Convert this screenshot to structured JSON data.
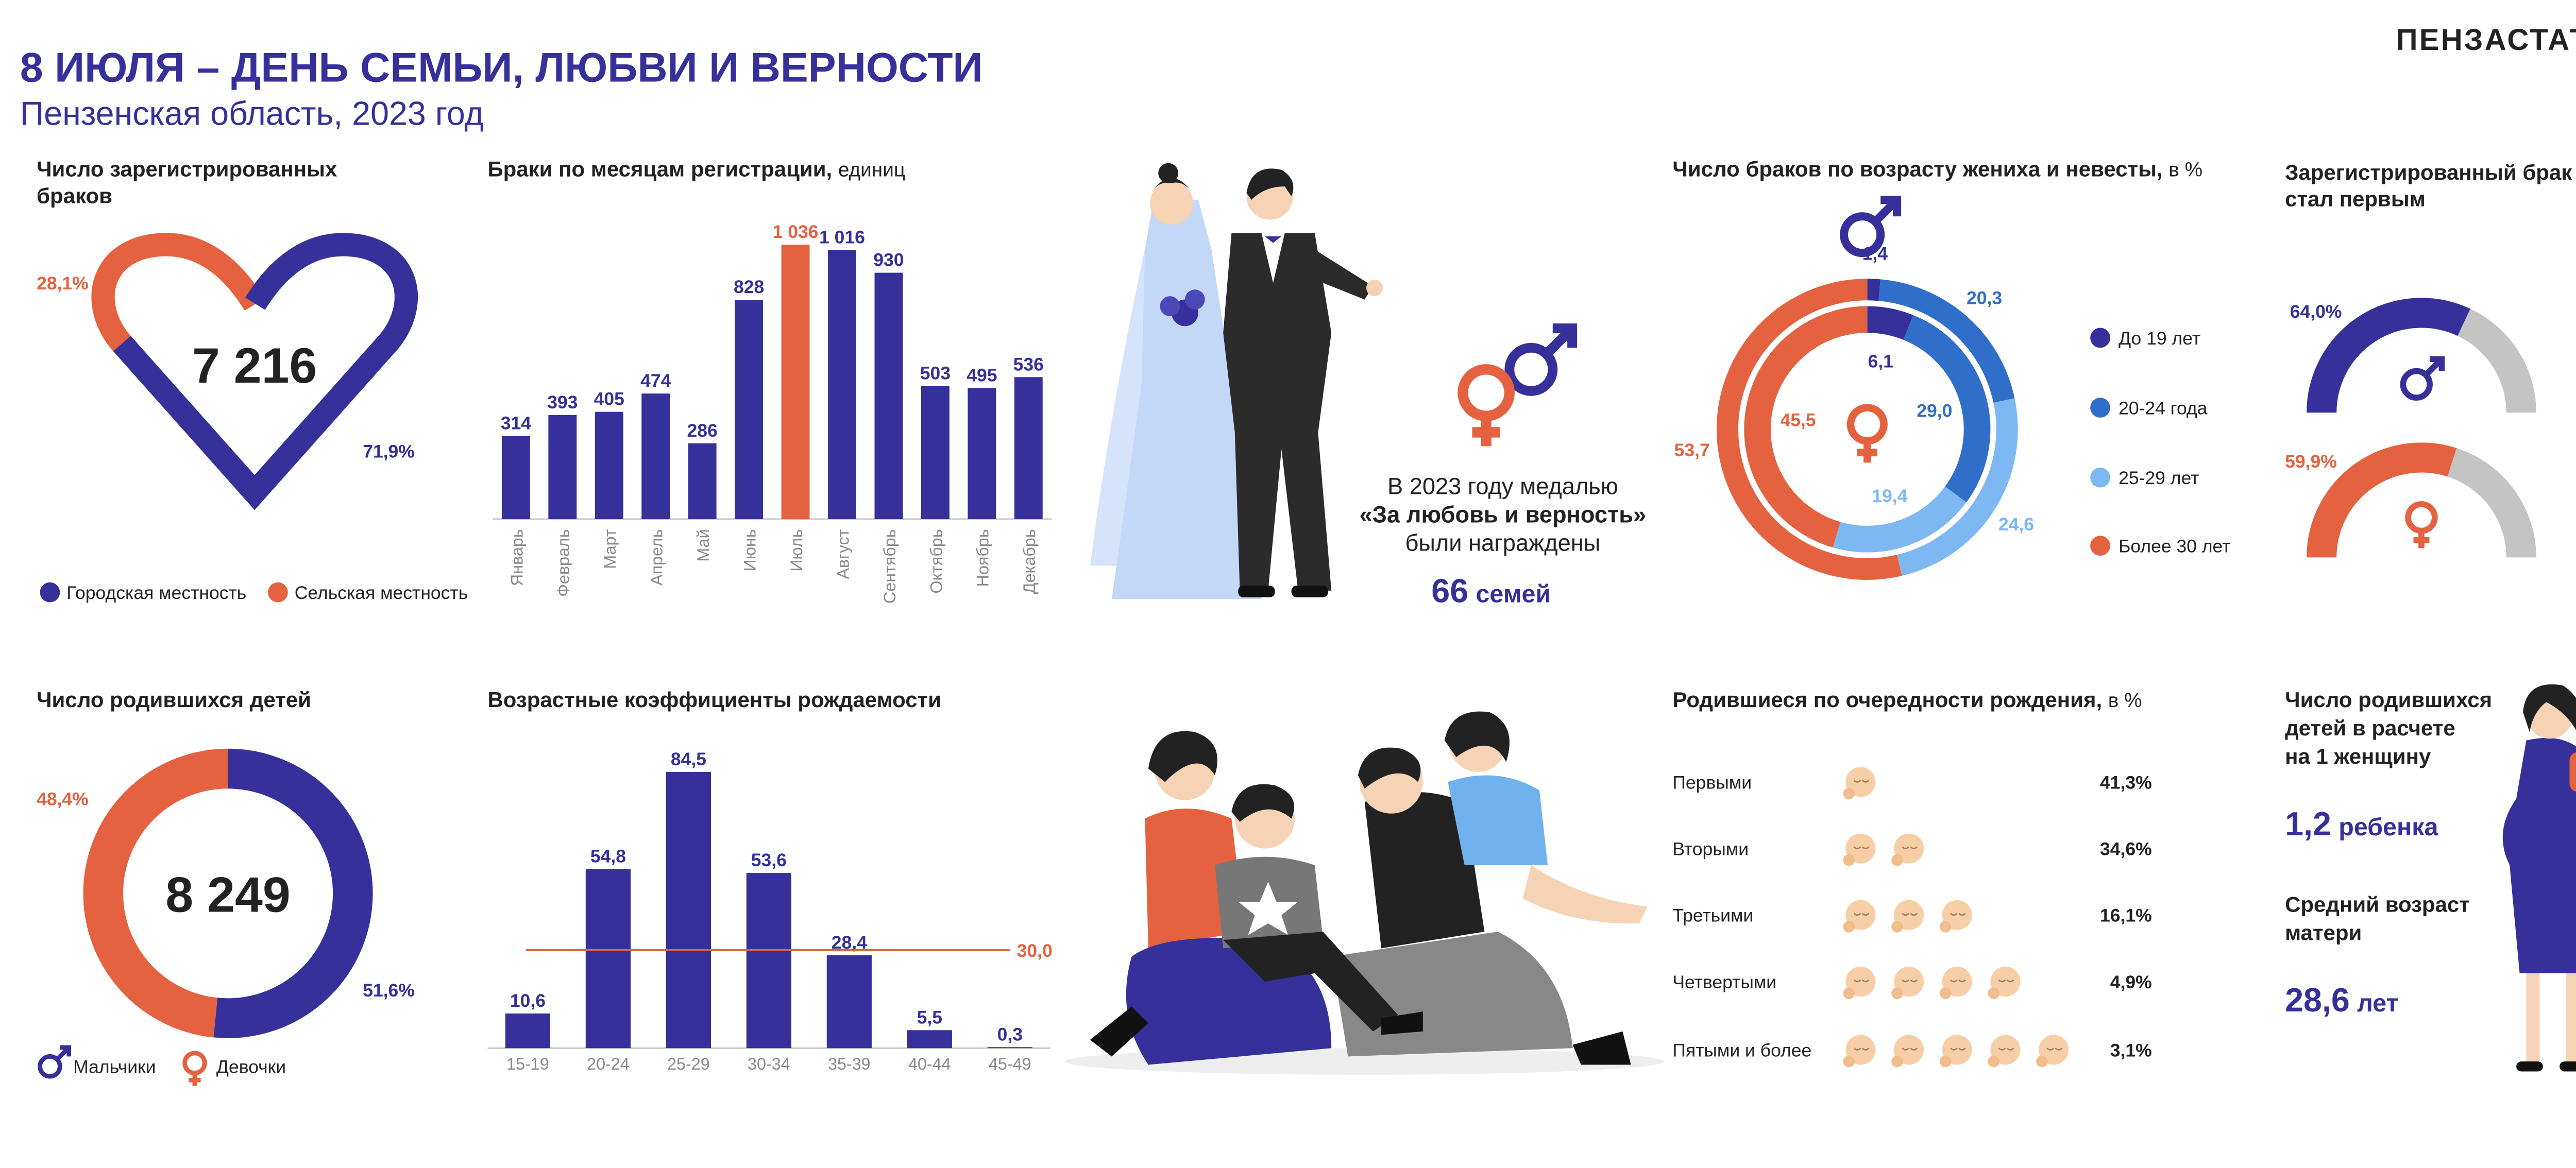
{
  "header": {
    "title": "8 ИЮЛЯ – ДЕНЬ СЕМЬИ, ЛЮБВИ И ВЕРНОСТИ",
    "subtitle": "Пензенская область, 2023 год",
    "brand": "ПЕНЗАСТАТ"
  },
  "chart_data": [
    {
      "type": "heart",
      "title": [
        "Число зарегистрированных",
        "браков"
      ],
      "total": "7 216",
      "categories": [
        "Городская местность",
        "Сельская местность"
      ],
      "values": [
        71.9,
        28.1
      ],
      "value_labels": [
        "71,9%",
        "28,1%"
      ],
      "colors": [
        "#35309a",
        "#e4623f"
      ]
    },
    {
      "type": "bar",
      "title": "Браки по месяцам регистрации,",
      "unit": "единиц",
      "categories": [
        "Январь",
        "Февраль",
        "Март",
        "Апрель",
        "Май",
        "Июнь",
        "Июль",
        "Август",
        "Сентябрь",
        "Октябрь",
        "Ноябрь",
        "Декабрь"
      ],
      "values": [
        314,
        393,
        405,
        474,
        286,
        828,
        1036,
        1016,
        930,
        503,
        495,
        536
      ],
      "value_labels": [
        "314",
        "393",
        "405",
        "474",
        "286",
        "828",
        "1 036",
        "1 016",
        "930",
        "503",
        "495",
        "536"
      ],
      "colors": [
        "#35309a",
        "#35309a",
        "#35309a",
        "#35309a",
        "#35309a",
        "#35309a",
        "#e4623f",
        "#35309a",
        "#35309a",
        "#35309a",
        "#35309a",
        "#35309a"
      ]
    },
    {
      "type": "rings",
      "title": "Число браков по возрасту жениха и невесты,",
      "unit": "в %",
      "categories": [
        "До 19 лет",
        "20-24 года",
        "25-29 лет",
        "Более 30 лет"
      ],
      "colors": [
        "#35309a",
        "#2f6fc9",
        "#7db8f2",
        "#e4623f"
      ],
      "series": [
        {
          "values": [
            1.4,
            20.3,
            24.6,
            53.7
          ],
          "value_labels": [
            "1,4",
            "20,3",
            "24,6",
            "53,7"
          ]
        },
        {
          "values": [
            6.1,
            29.0,
            19.4,
            45.5
          ],
          "value_labels": [
            "6,1",
            "29,0",
            "19,4",
            "45,5"
          ]
        }
      ]
    },
    {
      "type": "gauge",
      "title": [
        "Зарегистрированный брак",
        "стал первым"
      ],
      "values": [
        64.0,
        59.9
      ],
      "value_labels": [
        "64,0%",
        "59,9%"
      ],
      "colors": [
        "#35309a",
        "#e4623f"
      ],
      "track_color": "#c4c4c4"
    },
    {
      "type": "donut",
      "title": "Число родившихся детей",
      "total": "8 249",
      "categories": [
        "Мальчики",
        "Девочки"
      ],
      "values": [
        51.6,
        48.4
      ],
      "value_labels": [
        "51,6%",
        "48,4%"
      ],
      "colors": [
        "#35309a",
        "#e4623f"
      ]
    },
    {
      "type": "bar",
      "title": "Возрастные коэффициенты рождаемости",
      "categories": [
        "15-19",
        "20-24",
        "25-29",
        "30-34",
        "35-39",
        "40-44",
        "45-49"
      ],
      "values": [
        10.6,
        54.8,
        84.5,
        53.6,
        28.4,
        5.5,
        0.3
      ],
      "value_labels": [
        "10,6",
        "54,8",
        "84,5",
        "53,6",
        "28,4",
        "5,5",
        "0,3"
      ],
      "colors": [
        "#35309a",
        "#35309a",
        "#35309a",
        "#35309a",
        "#35309a",
        "#35309a",
        "#35309a"
      ],
      "reference": {
        "value": 30.0,
        "label": "30,0",
        "color": "#e4623f"
      }
    },
    {
      "type": "icons",
      "title": "Родившиеся по очередности рождения,",
      "unit": "в %",
      "categories": [
        "Первыми",
        "Вторыми",
        "Третьими",
        "Четвертыми",
        "Пятыми и более"
      ],
      "values": [
        41.3,
        34.6,
        16.1,
        4.9,
        3.1
      ],
      "value_labels": [
        "41,3%",
        "34,6%",
        "16,1%",
        "4,9%",
        "3,1%"
      ]
    }
  ],
  "medal": {
    "lines": [
      "В 2023 году медалью",
      "«За любовь и верность»",
      "были награждены"
    ],
    "count": "66",
    "count_unit": "семей"
  },
  "per_woman": {
    "title": [
      "Число родившихся",
      "детей в расчете",
      "на 1 женщину"
    ],
    "value": "1,2",
    "unit": "ребенка"
  },
  "mother_age": {
    "title": [
      "Средний возраст",
      "матери"
    ],
    "value": "28,6",
    "unit": "лет"
  }
}
